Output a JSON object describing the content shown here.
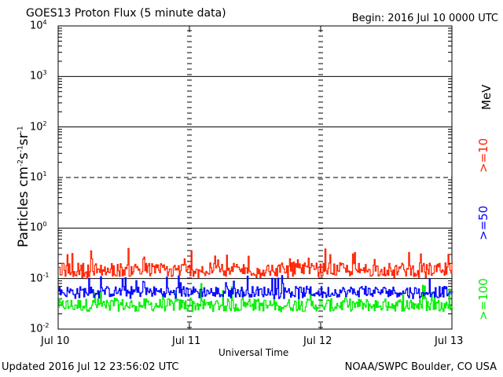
{
  "header": {
    "title": "GOES13 Proton Flux (5 minute data)",
    "begin": "Begin: 2016 Jul 10 0000 UTC"
  },
  "footer": {
    "updated": "Updated 2016 Jul 12 23:56:02 UTC",
    "source": "NOAA/SWPC Boulder, CO USA"
  },
  "chart_data": {
    "type": "line",
    "title": "GOES13 Proton Flux (5 minute data)",
    "xlabel": "Universal Time",
    "ylabel": "Particles cm-2s-1sr-1",
    "y_scale": "log",
    "ylim": [
      0.01,
      10000
    ],
    "xlim": [
      "Jul 10",
      "Jul 13"
    ],
    "x_ticks": [
      "Jul 10",
      "Jul 11",
      "Jul 12",
      "Jul 13"
    ],
    "y_ticks": [
      {
        "base": "10",
        "exp": "-2",
        "value": 0.01
      },
      {
        "base": "10",
        "exp": "-1",
        "value": 0.1
      },
      {
        "base": "10",
        "exp": "0",
        "value": 1
      },
      {
        "base": "10",
        "exp": "1",
        "value": 10
      },
      {
        "base": "10",
        "exp": "2",
        "value": 100
      },
      {
        "base": "10",
        "exp": "3",
        "value": 1000
      },
      {
        "base": "10",
        "exp": "4",
        "value": 10000
      }
    ],
    "threshold_line_value": 10,
    "grid": true,
    "series": [
      {
        "name": ">=10 MeV",
        "color": "#ff2200",
        "min": 0.1,
        "max": 0.4,
        "typical": 0.15
      },
      {
        "name": ">=50",
        "color": "#0000ff",
        "min": 0.04,
        "max": 0.12,
        "typical": 0.055
      },
      {
        "name": ">=100",
        "color": "#00ee00",
        "min": 0.022,
        "max": 0.08,
        "typical": 0.03
      }
    ],
    "series_labels": {
      "s10": ">=10",
      "mev": "MeV",
      "s50": ">=50",
      "s100": ">=100"
    }
  }
}
